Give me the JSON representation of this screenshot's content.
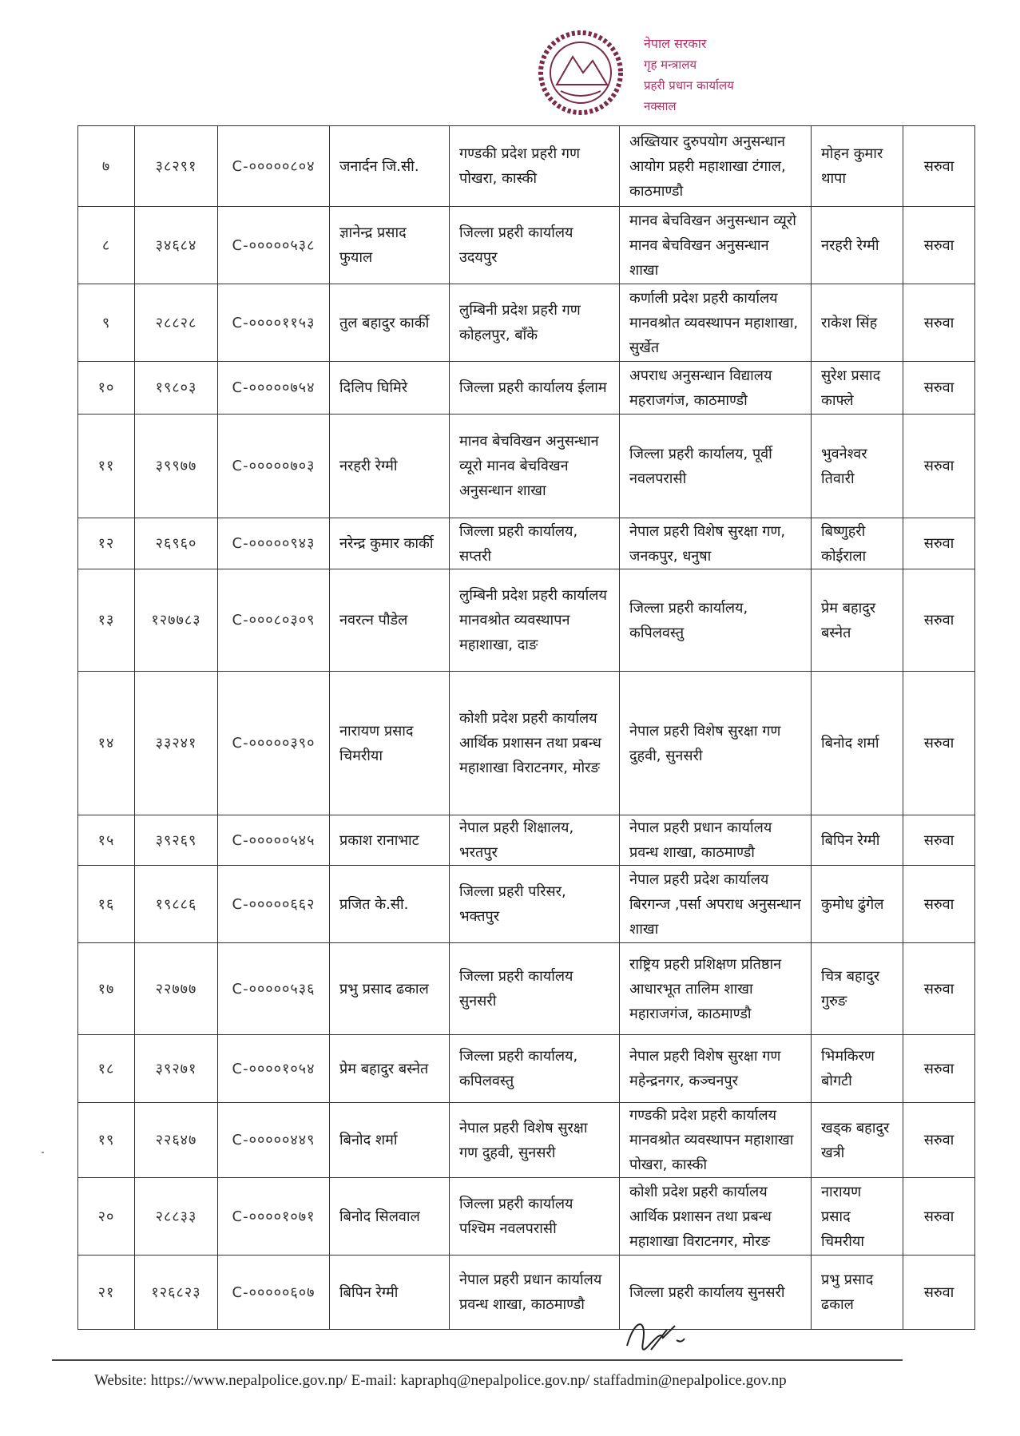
{
  "header": {
    "emblem_icon": "nepal-government-emblem",
    "stamp_text": [
      "नेपाल सरकार",
      "गृह मन्त्रालय",
      "प्रहरी प्रधान कार्यालय",
      "नक्साल"
    ],
    "stamp_color": "#b0306a"
  },
  "table": {
    "rows": [
      {
        "sn": "७",
        "number": "३८२९१",
        "code": "C-०००००८०४",
        "name": "जनार्दन जि.सी.",
        "from": "गण्डकी प्रदेश प्रहरी गण पोखरा, कास्की",
        "to": "अख्तियार दुरुपयोग अनुसन्धान आयोग प्रहरी महाशाखा टंगाल, काठमाण्डौ",
        "replacing": "मोहन कुमार थापा",
        "remark": "सरुवा"
      },
      {
        "sn": "८",
        "number": "३४६८४",
        "code": "C-०००००५३८",
        "name": "ज्ञानेन्द्र प्रसाद फुयाल",
        "from": "जिल्ला प्रहरी कार्यालय उदयपुर",
        "to": "मानव बेचविखन अनुसन्धान व्यूरो  मानव बेचविखन अनुसन्धान शाखा",
        "replacing": "नरहरी रेग्मी",
        "remark": "सरुवा"
      },
      {
        "sn": "९",
        "number": "२८८२८",
        "code": "C-००००११५३",
        "name": "तुल बहादुर कार्की",
        "from": "लुम्बिनी प्रदेश प्रहरी गण कोहलपुर, बाँके",
        "to": "कर्णाली प्रदेश प्रहरी कार्यालय मानवश्रोत व्यवस्थापन महाशाखा, सुर्खेत",
        "replacing": "राकेश सिंह",
        "remark": "सरुवा"
      },
      {
        "sn": "१०",
        "number": "१९८०३",
        "code": "C-०००००७५४",
        "name": "दिलिप घिमिरे",
        "from": "जिल्ला प्रहरी कार्यालय ईलाम",
        "to": "अपराध अनुसन्धान विद्यालय महराजगंज, काठमाण्डौ",
        "replacing": "सुरेश प्रसाद काफ्ले",
        "remark": "सरुवा"
      },
      {
        "sn": "११",
        "number": "३९९७७",
        "code": "C-०००००७०३",
        "name": "नरहरी रेग्मी",
        "from": "मानव बेचविखन अनुसन्धान व्यूरो  मानव बेचविखन अनुसन्धान शाखा",
        "to": "जिल्ला प्रहरी कार्यालय, पूर्वी नवलपरासी",
        "replacing": "भुवनेश्वर तिवारी",
        "remark": "सरुवा"
      },
      {
        "sn": "१२",
        "number": "२६९६०",
        "code": "C-०००००९४३",
        "name": "नरेन्द्र कुमार कार्की",
        "from": "जिल्ला प्रहरी कार्यालय, सप्तरी",
        "to": "नेपाल प्रहरी विशेष सुरक्षा गण, जनकपुर, धनुषा",
        "replacing": "बिष्णुहरी कोईराला",
        "remark": "सरुवा"
      },
      {
        "sn": "१३",
        "number": "१२७७८३",
        "code": "C-०००८०३०९",
        "name": "नवरत्न पौडेल",
        "from": "लुम्बिनी प्रदेश प्रहरी कार्यालय मानवश्रोत व्यवस्थापन महाशाखा, दाङ",
        "to": "जिल्ला प्रहरी कार्यालय, कपिलवस्तु",
        "replacing": "प्रेम बहादुर बस्नेत",
        "remark": "सरुवा"
      },
      {
        "sn": "१४",
        "number": "३३२४१",
        "code": "C-०००००३९०",
        "name": "नारायण प्रसाद चिमरीया",
        "from": "कोशी प्रदेश प्रहरी कार्यालय आर्थिक प्रशासन तथा प्रबन्ध महाशाखा  विराटनगर, मोरङ",
        "to": "नेपाल प्रहरी विशेष सुरक्षा गण दुहवी, सुनसरी",
        "replacing": "बिनोद शर्मा",
        "remark": "सरुवा"
      },
      {
        "sn": "१५",
        "number": "३९२६९",
        "code": "C-०००००५४५",
        "name": "प्रकाश रानाभाट",
        "from": "नेपाल प्रहरी शिक्षालय, भरतपुर",
        "to": "नेपाल प्रहरी प्रधान कार्यालय प्रवन्ध शाखा, काठमाण्डौ",
        "replacing": "बिपिन रेग्मी",
        "remark": "सरुवा"
      },
      {
        "sn": "१६",
        "number": "१९८८६",
        "code": "C-०००००६६२",
        "name": "प्रजित के.सी.",
        "from": "जिल्ला प्रहरी परिसर, भक्तपुर",
        "to": "नेपाल प्रहरी प्रदेश कार्यालय बिरगन्ज ,पर्सा अपराध अनुसन्धान शाखा",
        "replacing": "कुमोध ढुंगेल",
        "remark": "सरुवा"
      },
      {
        "sn": "१७",
        "number": "२२७७७",
        "code": "C-०००००५३६",
        "name": "प्रभु प्रसाद ढकाल",
        "from": "जिल्ला प्रहरी कार्यालय सुनसरी",
        "to": "राष्ट्रिय प्रहरी प्रशिक्षण प्रतिष्ठान आधारभूत तालिम शाखा महाराजगंज, काठमाण्डौ",
        "replacing": "चित्र बहादुर गुरुङ",
        "remark": "सरुवा"
      },
      {
        "sn": "१८",
        "number": "३९२७१",
        "code": "C-००००१०५४",
        "name": "प्रेम बहादुर बस्नेत",
        "from": " जिल्ला प्रहरी कार्यालय, कपिलवस्तु",
        "to": "नेपाल प्रहरी विशेष सुरक्षा गण महेन्द्रनगर, कञ्चनपुर",
        "replacing": "भिमकिरण बोगटी",
        "remark": "सरुवा"
      },
      {
        "sn": "१९",
        "number": "२२६४७",
        "code": "C-०००००४४९",
        "name": "बिनोद शर्मा",
        "from": "नेपाल प्रहरी विशेष सुरक्षा गण दुहवी, सुनसरी",
        "to": "गण्डकी प्रदेश प्रहरी कार्यालय मानवश्रोत व्यवस्थापन महाशाखा पोखरा, कास्की",
        "replacing": "खड्क बहादुर खत्री",
        "remark": "सरुवा"
      },
      {
        "sn": "२०",
        "number": "२८८३३",
        "code": "C-००००१०७१",
        "name": "बिनोद सिलवाल",
        "from": "जिल्ला प्रहरी कार्यालय पश्चिम नवलपरासी",
        "to": "कोशी प्रदेश प्रहरी कार्यालय आर्थिक प्रशासन तथा प्रबन्ध महाशाखा  विराटनगर, मोरङ",
        "replacing": "नारायण प्रसाद चिमरीया",
        "remark": "सरुवा"
      },
      {
        "sn": "२१",
        "number": "१२६८२३",
        "code": "C-०००००६०७",
        "name": "बिपिन रेग्मी",
        "from": "नेपाल प्रहरी प्रधान कार्यालय प्रवन्ध शाखा, काठमाण्डौ",
        "to": "जिल्ला प्रहरी कार्यालय सुनसरी",
        "replacing": "प्रभु प्रसाद ढकाल",
        "remark": "सरुवा"
      }
    ]
  },
  "footer": {
    "text": "Website: https://www.nepalpolice.gov.np/ E-mail: kapraphq@nepalpolice.gov.np/ staffadmin@nepalpolice.gov.np"
  }
}
